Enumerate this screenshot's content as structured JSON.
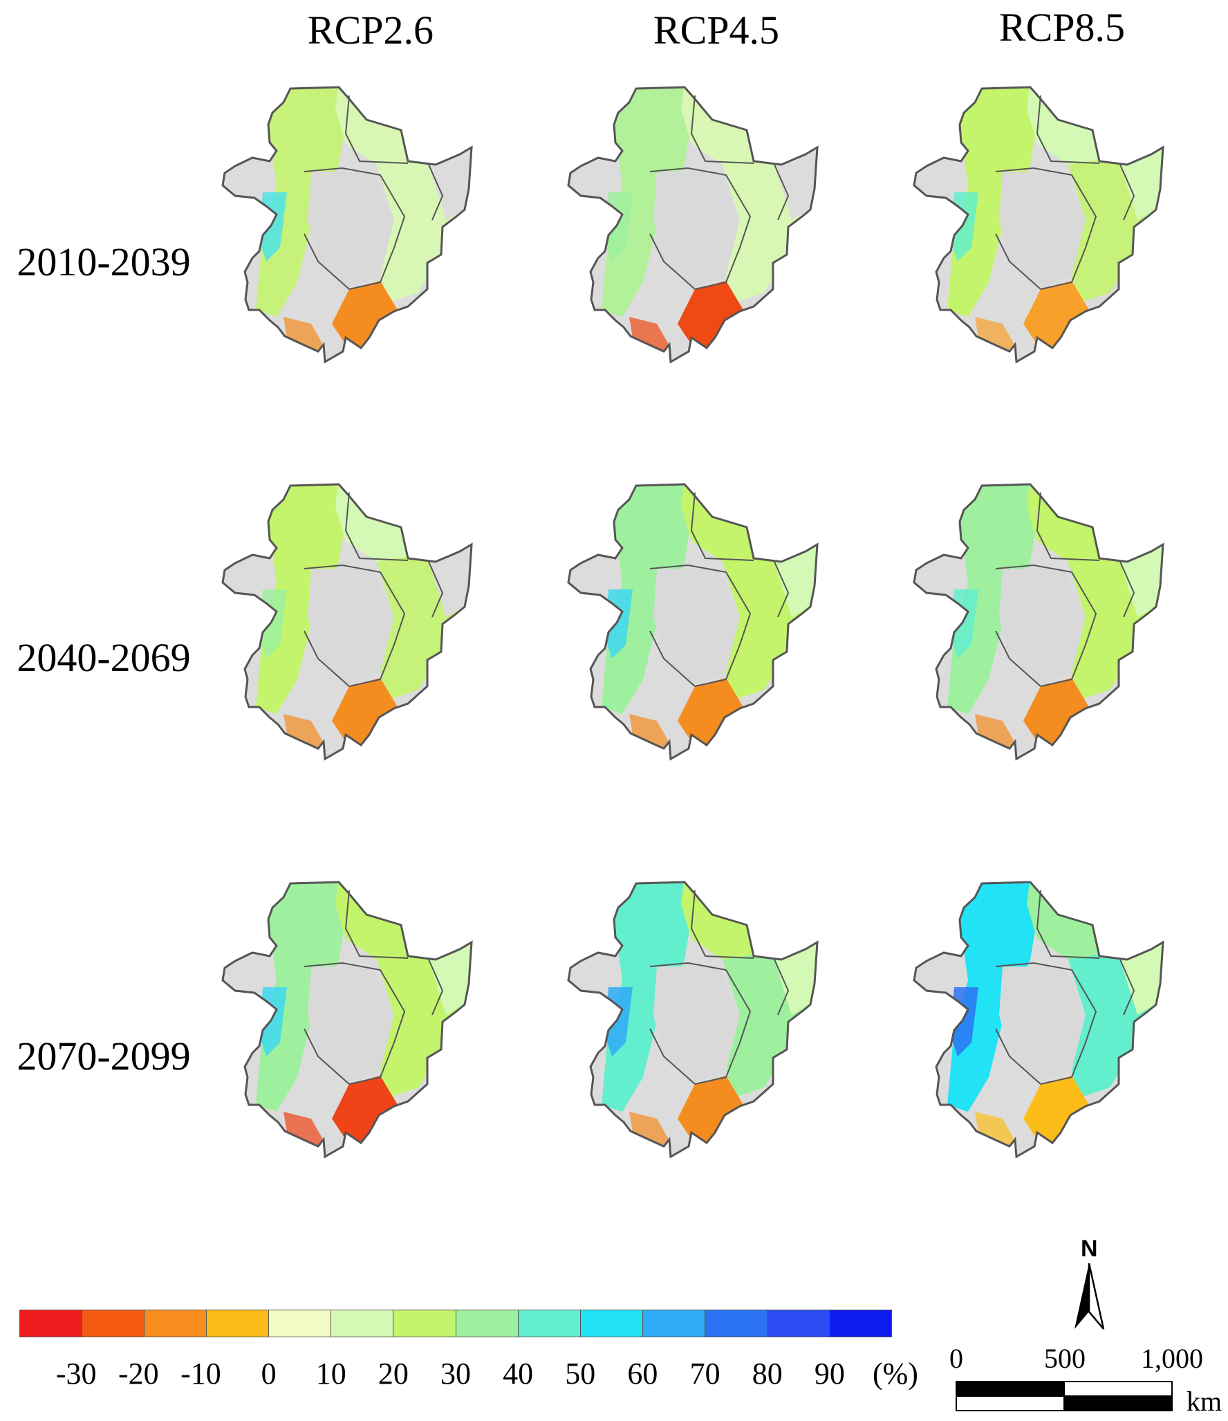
{
  "columns": [
    "RCP2.6",
    "RCP4.5",
    "RCP8.5"
  ],
  "rows": [
    "2010-2039",
    "2040-2069",
    "2070-2099"
  ],
  "legend": {
    "labels": [
      "-30",
      "-20",
      "-10",
      "0",
      "10",
      "20",
      "30",
      "40",
      "50",
      "60",
      "70",
      "80",
      "90"
    ],
    "unit": "(%)",
    "colors": [
      "#ee1c1c",
      "#f55a12",
      "#f98d1e",
      "#fcbd18",
      "#f3fbc4",
      "#d3f9b4",
      "#c4f46b",
      "#9ef09e",
      "#63eecd",
      "#22e2f5",
      "#30aaf6",
      "#2b73f2",
      "#2a4cf0",
      "#0f1aee"
    ]
  },
  "scale_bar": {
    "labels": [
      "0",
      "500",
      "1,000"
    ],
    "unit": "km"
  },
  "north_arrow": {
    "label": "N"
  },
  "panels": [
    {
      "scenario": "RCP2.6",
      "period": "2010-2039",
      "colors": {
        "northwest": "#c7f27a",
        "north": "#d8f7b4",
        "west_edge": "#4ee4e8",
        "east": "#d8f7b4",
        "far_east": "#dcdcdc",
        "southeast": "#f58c20"
      }
    },
    {
      "scenario": "RCP4.5",
      "period": "2010-2039",
      "colors": {
        "northwest": "#b2f09a",
        "north": "#d8f7b4",
        "west_edge": "#9ef09e",
        "east": "#d8f7b4",
        "far_east": "#dcdcdc",
        "southeast": "#ef4a14"
      }
    },
    {
      "scenario": "RCP8.5",
      "period": "2010-2039",
      "colors": {
        "northwest": "#c4f46b",
        "north": "#d3f9b4",
        "west_edge": "#63eecd",
        "east": "#c7f27a",
        "far_east": "#d3f9b4",
        "southeast": "#f7a02a"
      }
    },
    {
      "scenario": "RCP2.6",
      "period": "2040-2069",
      "colors": {
        "northwest": "#c4f46b",
        "north": "#d3f9b4",
        "west_edge": "#9ef09e",
        "east": "#c7f27a",
        "far_east": "#dcdcdc",
        "southeast": "#f58c20"
      }
    },
    {
      "scenario": "RCP4.5",
      "period": "2040-2069",
      "colors": {
        "northwest": "#9ef09e",
        "north": "#c4f46b",
        "west_edge": "#3ed8ee",
        "east": "#c4f46b",
        "far_east": "#d3f9b4",
        "southeast": "#f58c20"
      }
    },
    {
      "scenario": "RCP8.5",
      "period": "2040-2069",
      "colors": {
        "northwest": "#9ef09e",
        "north": "#c4f46b",
        "west_edge": "#63eecd",
        "east": "#c4f46b",
        "far_east": "#d3f9b4",
        "southeast": "#f58c20"
      }
    },
    {
      "scenario": "RCP2.6",
      "period": "2070-2099",
      "colors": {
        "northwest": "#9ef09e",
        "north": "#c4f46b",
        "west_edge": "#3ed8ee",
        "east": "#c4f46b",
        "far_east": "#d3f9b4",
        "southeast": "#ee4418"
      }
    },
    {
      "scenario": "RCP4.5",
      "period": "2070-2099",
      "colors": {
        "northwest": "#63eecd",
        "north": "#c4f46b",
        "west_edge": "#30aaf6",
        "east": "#9ef09e",
        "far_east": "#d3f9b4",
        "southeast": "#f58c20"
      }
    },
    {
      "scenario": "RCP8.5",
      "period": "2070-2099",
      "colors": {
        "northwest": "#22e2f5",
        "north": "#9ef09e",
        "west_edge": "#2b73f2",
        "east": "#63eecd",
        "far_east": "#d3f9b4",
        "southeast": "#fcbd18"
      }
    }
  ]
}
